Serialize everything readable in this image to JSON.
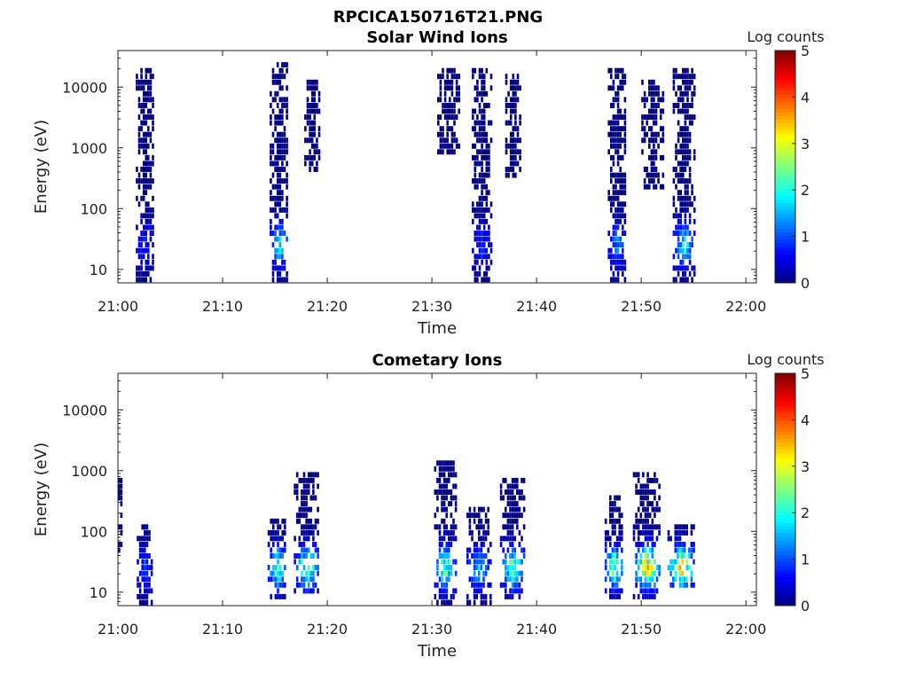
{
  "figure_title": "RPCICA150716T21.PNG",
  "chart_data": [
    {
      "type": "heatmap",
      "title": "Solar Wind Ions",
      "xlabel": "Time",
      "ylabel": "Energy (eV)",
      "x_ticks": [
        "21:00",
        "21:10",
        "21:20",
        "21:30",
        "21:40",
        "21:50",
        "22:00"
      ],
      "xlim_minutes": [
        0,
        61
      ],
      "y_scale": "log",
      "y_ticks": [
        10,
        100,
        1000,
        10000
      ],
      "y_tick_labels": [
        "10",
        "100",
        "1000",
        "10000"
      ],
      "ylim": [
        6,
        40000
      ],
      "colorbar": {
        "label": "Log counts",
        "range": [
          0,
          5
        ],
        "ticks": [
          "0",
          "1",
          "2",
          "3",
          "4",
          "5"
        ],
        "colormap": "jet"
      },
      "bursts": [
        {
          "t_start": 1.7,
          "t_end": 3.4,
          "e_min": 6,
          "e_max": 20000,
          "peak_log_counts": 1.0
        },
        {
          "t_start": 14.5,
          "t_end": 16.2,
          "e_min": 6,
          "e_max": 25000,
          "peak_log_counts": 2.0
        },
        {
          "t_start": 17.8,
          "t_end": 19.2,
          "e_min": 400,
          "e_max": 12000,
          "peak_log_counts": 0.5
        },
        {
          "t_start": 30.5,
          "t_end": 32.5,
          "e_min": 800,
          "e_max": 20000,
          "peak_log_counts": 0.5
        },
        {
          "t_start": 33.8,
          "t_end": 35.6,
          "e_min": 6,
          "e_max": 20000,
          "peak_log_counts": 1.0
        },
        {
          "t_start": 37.0,
          "t_end": 38.5,
          "e_min": 300,
          "e_max": 15000,
          "peak_log_counts": 0.5
        },
        {
          "t_start": 46.8,
          "t_end": 48.5,
          "e_min": 6,
          "e_max": 20000,
          "peak_log_counts": 1.5
        },
        {
          "t_start": 50.0,
          "t_end": 52.0,
          "e_min": 200,
          "e_max": 12000,
          "peak_log_counts": 0.5
        },
        {
          "t_start": 53.0,
          "t_end": 55.0,
          "e_min": 6,
          "e_max": 20000,
          "peak_log_counts": 2.2
        }
      ]
    },
    {
      "type": "heatmap",
      "title": "Cometary Ions",
      "xlabel": "Time",
      "ylabel": "Energy (eV)",
      "x_ticks": [
        "21:00",
        "21:10",
        "21:20",
        "21:30",
        "21:40",
        "21:50",
        "22:00"
      ],
      "xlim_minutes": [
        0,
        61
      ],
      "y_scale": "log",
      "y_ticks": [
        10,
        100,
        1000,
        10000
      ],
      "y_tick_labels": [
        "10",
        "100",
        "1000",
        "10000"
      ],
      "ylim": [
        6,
        40000
      ],
      "colorbar": {
        "label": "Log counts",
        "range": [
          0,
          5
        ],
        "ticks": [
          "0",
          "1",
          "2",
          "3",
          "4",
          "5"
        ],
        "colormap": "jet"
      },
      "bursts": [
        {
          "t_start": 0.0,
          "t_end": 0.4,
          "e_min": 40,
          "e_max": 800,
          "peak_log_counts": 1.0
        },
        {
          "t_start": 1.8,
          "t_end": 3.2,
          "e_min": 6,
          "e_max": 120,
          "peak_log_counts": 1.2
        },
        {
          "t_start": 14.3,
          "t_end": 16.0,
          "e_min": 8,
          "e_max": 150,
          "peak_log_counts": 2.8
        },
        {
          "t_start": 16.8,
          "t_end": 19.2,
          "e_min": 10,
          "e_max": 1000,
          "peak_log_counts": 2.8
        },
        {
          "t_start": 30.2,
          "t_end": 32.2,
          "e_min": 6,
          "e_max": 1500,
          "peak_log_counts": 2.8
        },
        {
          "t_start": 33.3,
          "t_end": 35.5,
          "e_min": 6,
          "e_max": 250,
          "peak_log_counts": 1.8
        },
        {
          "t_start": 36.5,
          "t_end": 38.8,
          "e_min": 8,
          "e_max": 800,
          "peak_log_counts": 2.8
        },
        {
          "t_start": 46.5,
          "t_end": 48.2,
          "e_min": 8,
          "e_max": 400,
          "peak_log_counts": 2.8
        },
        {
          "t_start": 49.2,
          "t_end": 51.8,
          "e_min": 8,
          "e_max": 1000,
          "peak_log_counts": 3.8
        },
        {
          "t_start": 52.5,
          "t_end": 55.0,
          "e_min": 12,
          "e_max": 120,
          "peak_log_counts": 3.6
        }
      ]
    }
  ]
}
